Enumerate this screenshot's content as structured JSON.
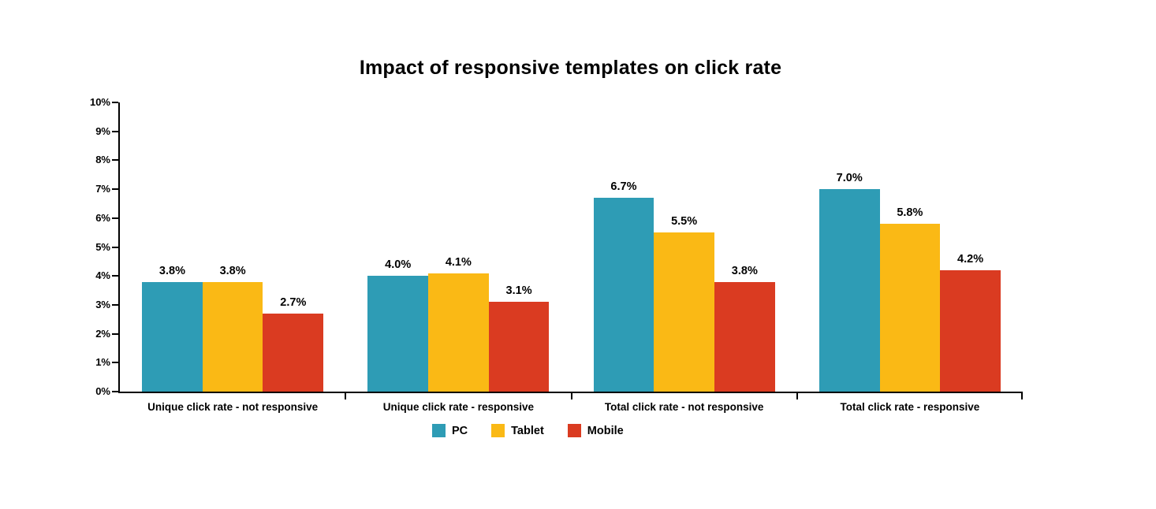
{
  "chart_data": {
    "type": "bar",
    "title": "Impact of responsive templates on click rate",
    "categories": [
      "Unique click rate - not responsive",
      "Unique click rate - responsive",
      "Total click rate - not responsive",
      "Total click rate - responsive"
    ],
    "series": [
      {
        "name": "PC",
        "color": "#2E9CB5",
        "values": [
          3.8,
          4.0,
          6.7,
          7.0
        ],
        "value_labels": [
          "3.8%",
          "4.0%",
          "6.7%",
          "7.0%"
        ]
      },
      {
        "name": "Tablet",
        "color": "#FAB915",
        "values": [
          3.8,
          4.1,
          5.5,
          5.8
        ],
        "value_labels": [
          "3.8%",
          "4.1%",
          "5.5%",
          "5.8%"
        ]
      },
      {
        "name": "Mobile",
        "color": "#DA3B21",
        "values": [
          2.7,
          3.1,
          3.8,
          4.2
        ],
        "value_labels": [
          "2.7%",
          "3.1%",
          "3.8%",
          "4.2%"
        ]
      }
    ],
    "ylim": [
      0,
      10
    ],
    "ytick_step": 1,
    "ytick_labels": [
      "0%",
      "1%",
      "2%",
      "3%",
      "4%",
      "5%",
      "6%",
      "7%",
      "8%",
      "9%",
      "10%"
    ],
    "xlabel": "",
    "ylabel": "",
    "grid": false,
    "legend_position": "bottom",
    "axis_color": "#000000",
    "background_color": "#FFFFFF"
  }
}
